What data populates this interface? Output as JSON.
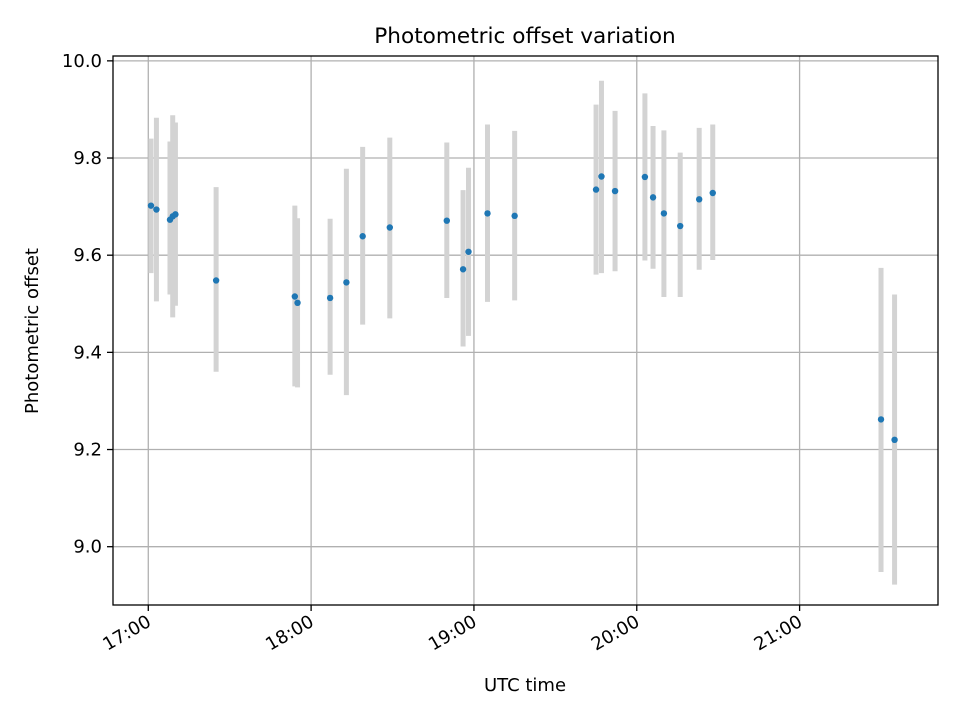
{
  "chart_data": {
    "type": "scatter",
    "title": "Photometric offset variation",
    "xlabel": "UTC time",
    "ylabel": "Photometric offset",
    "x_ticks": [
      "17:00",
      "18:00",
      "19:00",
      "20:00",
      "21:00"
    ],
    "y_ticks": [
      "9.0",
      "9.2",
      "9.4",
      "9.6",
      "9.8",
      "10.0"
    ],
    "xlim": [
      "16:47",
      "21:51"
    ],
    "ylim": [
      8.88,
      10.01
    ],
    "grid": true,
    "colors": {
      "marker": "#1f77b4",
      "errorbar": "#d3d3d3",
      "grid": "#b0b0b0"
    },
    "points": [
      {
        "t": "17:01",
        "y": 9.702,
        "lo": 9.563,
        "hi": 9.84
      },
      {
        "t": "17:03",
        "y": 9.694,
        "lo": 9.505,
        "hi": 9.883
      },
      {
        "t": "17:08",
        "y": 9.673,
        "lo": 9.519,
        "hi": 9.834
      },
      {
        "t": "17:09",
        "y": 9.68,
        "lo": 9.472,
        "hi": 9.888
      },
      {
        "t": "17:10",
        "y": 9.684,
        "lo": 9.496,
        "hi": 9.873
      },
      {
        "t": "17:25",
        "y": 9.548,
        "lo": 9.36,
        "hi": 9.74
      },
      {
        "t": "17:54",
        "y": 9.515,
        "lo": 9.33,
        "hi": 9.702
      },
      {
        "t": "17:55",
        "y": 9.502,
        "lo": 9.328,
        "hi": 9.676
      },
      {
        "t": "18:07",
        "y": 9.512,
        "lo": 9.354,
        "hi": 9.675
      },
      {
        "t": "18:13",
        "y": 9.544,
        "lo": 9.312,
        "hi": 9.778
      },
      {
        "t": "18:19",
        "y": 9.639,
        "lo": 9.457,
        "hi": 9.823
      },
      {
        "t": "18:29",
        "y": 9.657,
        "lo": 9.47,
        "hi": 9.842
      },
      {
        "t": "18:50",
        "y": 9.671,
        "lo": 9.512,
        "hi": 9.832
      },
      {
        "t": "18:56",
        "y": 9.571,
        "lo": 9.412,
        "hi": 9.734
      },
      {
        "t": "18:58",
        "y": 9.607,
        "lo": 9.434,
        "hi": 9.78
      },
      {
        "t": "19:05",
        "y": 9.686,
        "lo": 9.504,
        "hi": 9.869
      },
      {
        "t": "19:15",
        "y": 9.681,
        "lo": 9.507,
        "hi": 9.856
      },
      {
        "t": "19:45",
        "y": 9.735,
        "lo": 9.56,
        "hi": 9.91
      },
      {
        "t": "19:47",
        "y": 9.762,
        "lo": 9.563,
        "hi": 9.959
      },
      {
        "t": "19:52",
        "y": 9.732,
        "lo": 9.567,
        "hi": 9.897
      },
      {
        "t": "20:03",
        "y": 9.761,
        "lo": 9.589,
        "hi": 9.933
      },
      {
        "t": "20:06",
        "y": 9.719,
        "lo": 9.572,
        "hi": 9.866
      },
      {
        "t": "20:10",
        "y": 9.686,
        "lo": 9.514,
        "hi": 9.857
      },
      {
        "t": "20:16",
        "y": 9.66,
        "lo": 9.514,
        "hi": 9.811
      },
      {
        "t": "20:23",
        "y": 9.715,
        "lo": 9.57,
        "hi": 9.862
      },
      {
        "t": "20:28",
        "y": 9.728,
        "lo": 9.59,
        "hi": 9.869
      },
      {
        "t": "21:30",
        "y": 9.262,
        "lo": 8.948,
        "hi": 9.574
      },
      {
        "t": "21:35",
        "y": 9.22,
        "lo": 8.922,
        "hi": 9.519
      }
    ]
  }
}
